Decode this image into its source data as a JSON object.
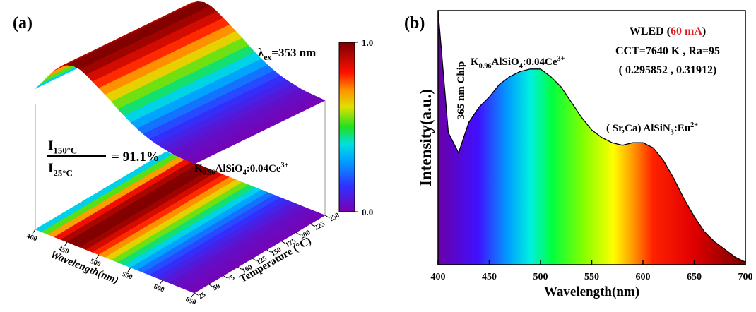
{
  "chart_data": [
    {
      "type": "surface3d",
      "panel_label": "(a)",
      "annotation": [
        {
          "t": "λ"
        },
        {
          "t": "ex",
          "s": "sub"
        },
        {
          "t": "=353 nm"
        }
      ],
      "ratio_numerator": [
        {
          "t": "I"
        },
        {
          "t": "150°C",
          "s": "sub"
        }
      ],
      "ratio_denominator": [
        {
          "t": "I"
        },
        {
          "t": "25°C",
          "s": "sub"
        }
      ],
      "ratio_value": "= 91.1%",
      "compound": [
        {
          "t": "K"
        },
        {
          "t": "0.96",
          "s": "sub"
        },
        {
          "t": "AlSiO"
        },
        {
          "t": "4",
          "s": "sub"
        },
        {
          "t": ":0.04Ce"
        },
        {
          "t": "3+",
          "s": "sup"
        }
      ],
      "xlabel": "Wavelength(nm)",
      "ylabel": "Temperature (°C)",
      "x": [
        400,
        410,
        420,
        430,
        440,
        450,
        460,
        470,
        480,
        490,
        500,
        510,
        520,
        530,
        540,
        550,
        560,
        570,
        580,
        590,
        600,
        610,
        620,
        630,
        640,
        650
      ],
      "values": [
        0.3,
        0.45,
        0.62,
        0.78,
        0.9,
        0.97,
        1.0,
        0.98,
        0.92,
        0.84,
        0.76,
        0.68,
        0.6,
        0.5,
        0.42,
        0.34,
        0.27,
        0.21,
        0.16,
        0.12,
        0.09,
        0.06,
        0.04,
        0.03,
        0.02,
        0.01
      ],
      "xlim": [
        400,
        650
      ],
      "xticks": [
        400,
        450,
        500,
        550,
        600,
        650
      ],
      "ylim": [
        25,
        250
      ],
      "yticks": [
        25,
        50,
        75,
        100,
        125,
        150,
        175,
        200,
        225,
        250
      ],
      "colorbar": {
        "lim": [
          0,
          1
        ],
        "ticks": [
          {
            "value": 0,
            "label": "0.0"
          },
          {
            "value": 1,
            "label": "1.0"
          }
        ]
      }
    },
    {
      "type": "area",
      "panel_label": "(b)",
      "xlabel": "Wavelength(nm)",
      "ylabel": "Intensity(a.u.)",
      "x": [
        400,
        405,
        410,
        420,
        430,
        440,
        450,
        460,
        470,
        480,
        490,
        500,
        510,
        520,
        530,
        540,
        550,
        560,
        570,
        580,
        590,
        600,
        610,
        620,
        630,
        640,
        650,
        660,
        670,
        680,
        690,
        700
      ],
      "values": [
        1.0,
        0.76,
        0.52,
        0.44,
        0.56,
        0.62,
        0.66,
        0.71,
        0.74,
        0.76,
        0.77,
        0.77,
        0.74,
        0.7,
        0.64,
        0.58,
        0.53,
        0.5,
        0.48,
        0.47,
        0.48,
        0.48,
        0.46,
        0.41,
        0.34,
        0.26,
        0.19,
        0.13,
        0.09,
        0.06,
        0.03,
        0.01
      ],
      "xlim": [
        400,
        700
      ],
      "xticks": [
        400,
        450,
        500,
        550,
        600,
        650,
        700
      ],
      "ylim": [
        0,
        1
      ],
      "title": [
        {
          "t": "WLED ("
        },
        {
          "t": "60 mA",
          "s": "red"
        },
        {
          "t": ")"
        }
      ],
      "cct": "CCT=7640 K , Ra=95",
      "coordinates": "( 0.295852 , 0.31912)",
      "chip_label": "365 nm Chip",
      "compound": [
        {
          "t": "K"
        },
        {
          "t": "0.96",
          "s": "sub"
        },
        {
          "t": "AlSiO"
        },
        {
          "t": "4",
          "s": "sub"
        },
        {
          "t": ":0.04Ce"
        },
        {
          "t": "3+",
          "s": "sup"
        }
      ],
      "phosphor_label": [
        {
          "t": "( Sr,Ca) AlSiN"
        },
        {
          "t": "3",
          "s": "sub"
        },
        {
          "t": ":Eu"
        },
        {
          "t": "2+",
          "s": "sup"
        }
      ]
    }
  ]
}
